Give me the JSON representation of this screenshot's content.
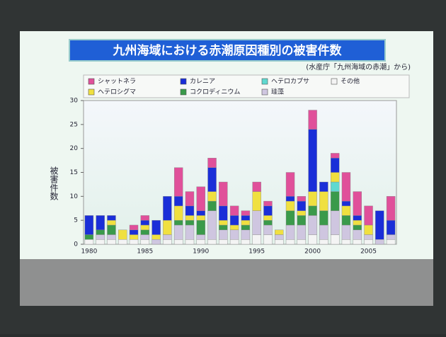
{
  "chart_data": {
    "type": "bar",
    "stacked": true,
    "title": "九州海域における赤潮原因種別の被害件数",
    "subtitle": "(水産庁「九州海域の赤潮」から)",
    "y_label": "被害件数",
    "categories": [
      "1980",
      null,
      null,
      null,
      null,
      "1985",
      null,
      null,
      null,
      null,
      "1990",
      null,
      null,
      null,
      null,
      "1995",
      null,
      null,
      null,
      null,
      "2000",
      null,
      null,
      null,
      null,
      "2005",
      null,
      null
    ],
    "series": [
      {
        "name": "シャットネラ",
        "color": "#e0509a",
        "values": [
          0,
          0,
          0,
          0,
          1,
          1,
          0,
          0,
          6,
          3,
          5,
          2,
          5,
          2,
          1,
          2,
          1,
          0,
          5,
          1,
          4,
          0,
          1,
          6,
          5,
          4,
          0,
          5
        ]
      },
      {
        "name": "カレニア",
        "color": "#1a2ed8",
        "values": [
          4,
          3,
          1,
          0,
          1,
          1,
          3,
          5,
          2,
          2,
          1,
          5,
          3,
          2,
          1,
          0,
          2,
          0,
          1,
          2,
          13,
          2,
          3,
          1,
          1,
          0,
          6,
          3
        ]
      },
      {
        "name": "ヘテロカプサ",
        "color": "#5fd9d0",
        "values": [
          0,
          0,
          0,
          0,
          0,
          0,
          0,
          0,
          0,
          0,
          0,
          0,
          0,
          0,
          0,
          0,
          0,
          0,
          0,
          0,
          0,
          0,
          2,
          0,
          0,
          0,
          0,
          0
        ]
      },
      {
        "name": "その他",
        "color": "#f4f4f4",
        "values": [
          1,
          1,
          1,
          1,
          1,
          1,
          0,
          1,
          1,
          1,
          1,
          1,
          1,
          1,
          1,
          2,
          2,
          1,
          1,
          1,
          2,
          1,
          2,
          1,
          1,
          1,
          0,
          1
        ]
      },
      {
        "name": "ヘテロシグマ",
        "color": "#f0e040",
        "values": [
          0,
          0,
          1,
          2,
          1,
          1,
          1,
          3,
          3,
          1,
          1,
          2,
          1,
          1,
          1,
          4,
          1,
          1,
          2,
          1,
          3,
          4,
          2,
          2,
          1,
          2,
          0,
          0
        ]
      },
      {
        "name": "コクロディニウム",
        "color": "#3a9a4a",
        "values": [
          1,
          1,
          2,
          0,
          0,
          1,
          0,
          0,
          1,
          1,
          3,
          2,
          1,
          0,
          1,
          0,
          1,
          0,
          3,
          2,
          2,
          3,
          4,
          2,
          1,
          0,
          0,
          0
        ]
      },
      {
        "name": "珪藻",
        "color": "#cfc6e0",
        "values": [
          0,
          1,
          1,
          0,
          0,
          1,
          1,
          1,
          3,
          3,
          1,
          6,
          2,
          2,
          2,
          5,
          2,
          1,
          3,
          3,
          4,
          3,
          5,
          3,
          2,
          1,
          1,
          1
        ]
      }
    ],
    "ylim": [
      0,
      30
    ],
    "yticks": [
      0,
      5,
      10,
      15,
      20,
      25,
      30
    ]
  }
}
